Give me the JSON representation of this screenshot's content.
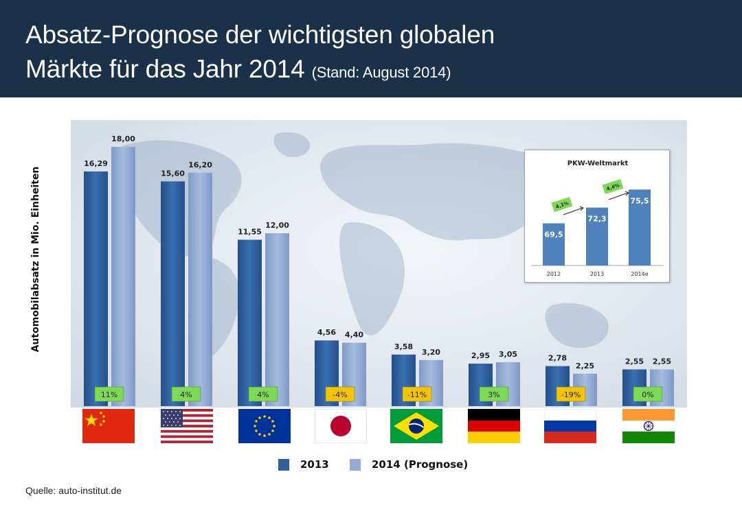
{
  "header": {
    "title_line1": "Absatz-Prognose der wichtigsten globalen",
    "title_line2": "Märkte für das Jahr 2014",
    "title_note": "(Stand: August 2014)"
  },
  "source": {
    "label": "Quelle:",
    "value": "auto-institut.de"
  },
  "colors": {
    "header_bg": "#1b3049",
    "series_2013": "#2f5f9c",
    "series_2014": "#93abd2",
    "badge_positive": "#7ed957",
    "badge_negative": "#f5c400"
  },
  "chart_data": [
    {
      "type": "bar",
      "ylabel": "Automobilabsatz in Mio. Einheiten",
      "ylim": [
        0,
        20
      ],
      "grid": false,
      "legend_position": "bottom",
      "categories": [
        "China",
        "USA",
        "EU",
        "Japan",
        "Brasilien",
        "Deutschland",
        "Russland",
        "Indien"
      ],
      "category_icons": [
        "flag-china",
        "flag-usa",
        "flag-eu",
        "flag-japan",
        "flag-brazil",
        "flag-germany",
        "flag-russia",
        "flag-india"
      ],
      "series": [
        {
          "name": "2013",
          "values": [
            16.29,
            15.6,
            11.55,
            4.56,
            3.58,
            2.95,
            2.78,
            2.55
          ],
          "value_labels": [
            "16,29",
            "15,60",
            "11,55",
            "4,56",
            "3,58",
            "2,95",
            "2,78",
            "2,55"
          ]
        },
        {
          "name": "2014 (Prognose)",
          "values": [
            18.0,
            16.2,
            12.0,
            4.4,
            3.2,
            3.05,
            2.25,
            2.55
          ],
          "value_labels": [
            "18,00",
            "16,20",
            "12,00",
            "4,40",
            "3,20",
            "3,05",
            "2,25",
            "2,55"
          ]
        }
      ],
      "growth_labels": [
        "11%",
        "4%",
        "4%",
        "-4%",
        "-11%",
        "3%",
        "-19%",
        "0%"
      ],
      "growth_colors": [
        "#7ed957",
        "#7ed957",
        "#7ed957",
        "#f5c400",
        "#f5c400",
        "#7ed957",
        "#f5c400",
        "#7ed957"
      ]
    },
    {
      "type": "bar",
      "title": "PKW-Weltmarkt",
      "categories": [
        "2012",
        "2013",
        "2014e"
      ],
      "values": [
        69.5,
        72.3,
        75.5
      ],
      "value_labels": [
        "69,5",
        "72,3",
        "75,5"
      ],
      "ylim": [
        0,
        80
      ],
      "growth_labels": [
        "4,1%",
        "4,4%"
      ]
    }
  ]
}
